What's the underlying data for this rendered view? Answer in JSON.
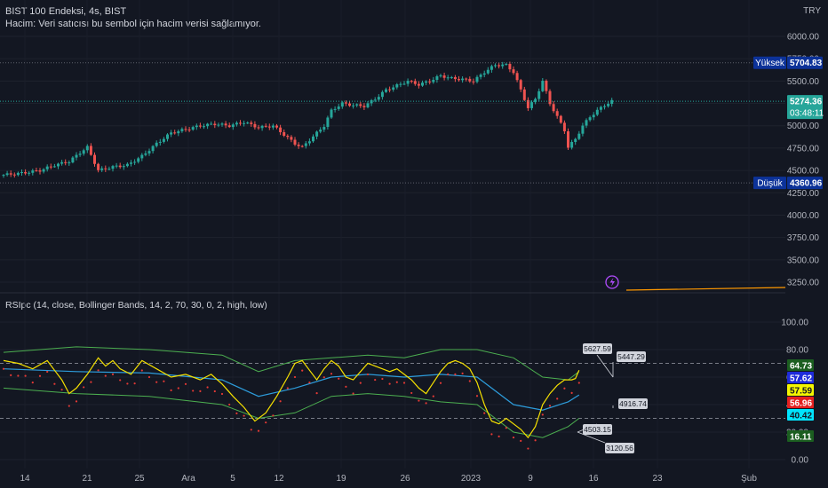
{
  "header": {
    "title": "BIST 100 Endeksi, 4s, BIST",
    "volume_note": "Hacim: Veri satıcısı bu sembol için hacim verisi sağlamıyor.",
    "currency": "TRY"
  },
  "price_badges": {
    "high_label": "Yüksek",
    "high_value": "5704.83",
    "low_label": "Düşük",
    "low_value": "4360.96",
    "last_value": "5274.36",
    "countdown": "03:48:11"
  },
  "rsi_legend": "RSIpc (14, close, Bollinger Bands, 14, 2, 70, 30, 0, 2, high, low)",
  "rsi_badges": [
    {
      "value": "64.73",
      "bg": "#1b5e20",
      "fg": "#ffffff"
    },
    {
      "value": "57.62",
      "bg": "#1e2bdb",
      "fg": "#ffffff"
    },
    {
      "value": "57.59",
      "bg": "#f5f500",
      "fg": "#131722"
    },
    {
      "value": "56.96",
      "bg": "#e52020",
      "fg": "#ffffff"
    },
    {
      "value": "40.42",
      "bg": "#00e5ff",
      "fg": "#131722"
    },
    {
      "value": "16.11",
      "bg": "#1b5e20",
      "fg": "#ffffff"
    }
  ],
  "annotations": [
    "5627.59",
    "5447.29",
    "4916.74",
    "4503.15",
    "3120.56"
  ],
  "colors": {
    "up": "#26a69a",
    "down": "#ef5350",
    "rsi": "#f5e000",
    "basis": "#2d9cdb",
    "bands": "#4caf50",
    "dots": "#e53935",
    "bg": "#131722",
    "accent": "#b24cff"
  },
  "chart_data": [
    {
      "type": "candlestick",
      "title": "BIST 100 Endeksi, 4s, BIST",
      "y_ticks": [
        "6000.00",
        "5750.00",
        "5500.00",
        "5250.00",
        "5000.00",
        "4750.00",
        "4500.00",
        "4250.00",
        "4000.00",
        "3750.00",
        "3500.00",
        "3250.00"
      ],
      "x_ticks": [
        "14",
        "21",
        "25",
        "Ara",
        "5",
        "12",
        "19",
        "26",
        "2023",
        "9",
        "16",
        "23",
        "Şub"
      ],
      "ylim": [
        3200,
        6050
      ],
      "high": 5704.83,
      "low": 4360.96,
      "last": 5274.36,
      "close_path": [
        [
          0,
          4450
        ],
        [
          5,
          4470
        ],
        [
          10,
          4500
        ],
        [
          14,
          4560
        ],
        [
          18,
          4600
        ],
        [
          21,
          4700
        ],
        [
          23,
          4760
        ],
        [
          26,
          4500
        ],
        [
          30,
          4540
        ],
        [
          34,
          4560
        ],
        [
          38,
          4660
        ],
        [
          42,
          4800
        ],
        [
          46,
          4920
        ],
        [
          50,
          4960
        ],
        [
          54,
          5000
        ],
        [
          58,
          5020
        ],
        [
          62,
          5000
        ],
        [
          66,
          5040
        ],
        [
          70,
          4980
        ],
        [
          74,
          5000
        ],
        [
          77,
          4900
        ],
        [
          80,
          4800
        ],
        [
          82,
          4760
        ],
        [
          85,
          4880
        ],
        [
          88,
          5000
        ],
        [
          90,
          5170
        ],
        [
          93,
          5250
        ],
        [
          96,
          5230
        ],
        [
          99,
          5220
        ],
        [
          102,
          5300
        ],
        [
          105,
          5400
        ],
        [
          108,
          5450
        ],
        [
          111,
          5500
        ],
        [
          114,
          5460
        ],
        [
          117,
          5500
        ],
        [
          120,
          5560
        ],
        [
          123,
          5530
        ],
        [
          126,
          5520
        ],
        [
          129,
          5500
        ],
        [
          132,
          5600
        ],
        [
          135,
          5680
        ],
        [
          138,
          5680
        ],
        [
          140,
          5600
        ],
        [
          142,
          5400
        ],
        [
          144,
          5200
        ],
        [
          146,
          5300
        ],
        [
          148,
          5500
        ],
        [
          150,
          5250
        ],
        [
          152,
          5100
        ],
        [
          154,
          4950
        ],
        [
          155,
          4760
        ],
        [
          157,
          4850
        ],
        [
          159,
          5000
        ],
        [
          161,
          5100
        ],
        [
          163,
          5170
        ],
        [
          165,
          5230
        ],
        [
          167,
          5274.36
        ]
      ]
    },
    {
      "type": "line",
      "title": "RSIpc (14, close, Bollinger Bands, 14, 2, 70, 30, 0, 2, high, low)",
      "y_ticks": [
        "100.00",
        "80.00",
        "60.00",
        "40.00",
        "20.00",
        "0.00"
      ],
      "ylim": [
        0,
        100
      ],
      "bands": [
        70,
        30
      ],
      "series": [
        {
          "name": "RSI",
          "values": [
            [
              0,
              72
            ],
            [
              4,
              70
            ],
            [
              8,
              66
            ],
            [
              12,
              72
            ],
            [
              14,
              65
            ],
            [
              16,
              58
            ],
            [
              18,
              48
            ],
            [
              20,
              52
            ],
            [
              23,
              62
            ],
            [
              26,
              74
            ],
            [
              28,
              68
            ],
            [
              30,
              72
            ],
            [
              32,
              66
            ],
            [
              35,
              62
            ],
            [
              38,
              72
            ],
            [
              42,
              66
            ],
            [
              46,
              60
            ],
            [
              50,
              62
            ],
            [
              54,
              58
            ],
            [
              57,
              62
            ],
            [
              60,
              55
            ],
            [
              63,
              46
            ],
            [
              66,
              38
            ],
            [
              69,
              28
            ],
            [
              72,
              34
            ],
            [
              75,
              46
            ],
            [
              78,
              60
            ],
            [
              80,
              70
            ],
            [
              82,
              72
            ],
            [
              84,
              65
            ],
            [
              86,
              58
            ],
            [
              88,
              66
            ],
            [
              90,
              72
            ],
            [
              92,
              68
            ],
            [
              94,
              60
            ],
            [
              96,
              58
            ],
            [
              98,
              64
            ],
            [
              100,
              70
            ],
            [
              102,
              68
            ],
            [
              104,
              66
            ],
            [
              106,
              64
            ],
            [
              108,
              66
            ],
            [
              110,
              62
            ],
            [
              112,
              58
            ],
            [
              114,
              52
            ],
            [
              116,
              48
            ],
            [
              118,
              56
            ],
            [
              120,
              64
            ],
            [
              122,
              70
            ],
            [
              124,
              72
            ],
            [
              126,
              70
            ],
            [
              128,
              66
            ],
            [
              130,
              56
            ],
            [
              132,
              40
            ],
            [
              134,
              28
            ],
            [
              136,
              26
            ],
            [
              138,
              30
            ],
            [
              140,
              26
            ],
            [
              142,
              22
            ],
            [
              144,
              16
            ],
            [
              146,
              24
            ],
            [
              148,
              40
            ],
            [
              150,
              48
            ],
            [
              152,
              54
            ],
            [
              154,
              58
            ],
            [
              156,
              58
            ],
            [
              157,
              59
            ],
            [
              158,
              65
            ]
          ]
        },
        {
          "name": "Basis",
          "values": [
            [
              0,
              66
            ],
            [
              20,
              64
            ],
            [
              40,
              63
            ],
            [
              60,
              58
            ],
            [
              70,
              46
            ],
            [
              80,
              52
            ],
            [
              90,
              60
            ],
            [
              100,
              62
            ],
            [
              110,
              60
            ],
            [
              120,
              62
            ],
            [
              130,
              60
            ],
            [
              140,
              40
            ],
            [
              148,
              36
            ],
            [
              155,
              42
            ],
            [
              158,
              47
            ]
          ]
        },
        {
          "name": "Upper",
          "values": [
            [
              0,
              78
            ],
            [
              20,
              82
            ],
            [
              40,
              80
            ],
            [
              60,
              76
            ],
            [
              70,
              64
            ],
            [
              80,
              72
            ],
            [
              90,
              74
            ],
            [
              100,
              76
            ],
            [
              110,
              74
            ],
            [
              120,
              80
            ],
            [
              130,
              80
            ],
            [
              140,
              74
            ],
            [
              148,
              60
            ],
            [
              155,
              58
            ],
            [
              158,
              64
            ]
          ]
        },
        {
          "name": "Lower",
          "values": [
            [
              0,
              52
            ],
            [
              20,
              48
            ],
            [
              40,
              46
            ],
            [
              60,
              40
            ],
            [
              70,
              30
            ],
            [
              80,
              34
            ],
            [
              90,
              46
            ],
            [
              100,
              48
            ],
            [
              110,
              46
            ],
            [
              120,
              42
            ],
            [
              130,
              40
            ],
            [
              140,
              20
            ],
            [
              148,
              16
            ],
            [
              155,
              24
            ],
            [
              158,
              30
            ]
          ]
        }
      ]
    }
  ]
}
